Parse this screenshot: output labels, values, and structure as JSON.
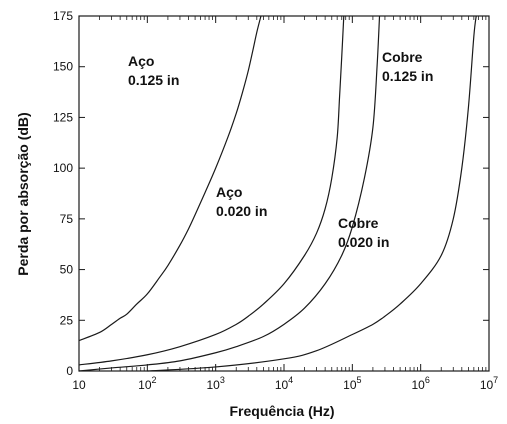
{
  "chart_data": {
    "type": "line",
    "title": "",
    "xlabel": "Frequência (Hz)",
    "ylabel": "Perda por absorção (dB)",
    "x_scale": "log",
    "xlim": [
      10,
      10000000
    ],
    "ylim": [
      0,
      175
    ],
    "x_ticks": [
      {
        "value": 10,
        "base": "10",
        "exp": ""
      },
      {
        "value": 100,
        "base": "10",
        "exp": "2"
      },
      {
        "value": 1000,
        "base": "10",
        "exp": "3"
      },
      {
        "value": 10000,
        "base": "10",
        "exp": "4"
      },
      {
        "value": 100000,
        "base": "10",
        "exp": "5"
      },
      {
        "value": 1000000,
        "base": "10",
        "exp": "6"
      },
      {
        "value": 10000000,
        "base": "10",
        "exp": "7"
      }
    ],
    "y_ticks": [
      0,
      25,
      50,
      75,
      100,
      125,
      150,
      175
    ],
    "grid": false,
    "legend": "none",
    "series": [
      {
        "label_lines": [
          "Aço",
          "0.125 in"
        ],
        "points": [
          [
            10,
            15
          ],
          [
            20,
            19
          ],
          [
            30,
            23
          ],
          [
            40,
            26
          ],
          [
            50,
            28
          ],
          [
            70,
            33
          ],
          [
            100,
            38
          ],
          [
            150,
            46
          ],
          [
            200,
            52
          ],
          [
            300,
            62
          ],
          [
            400,
            70
          ],
          [
            500,
            77
          ],
          [
            700,
            88
          ],
          [
            1000,
            100
          ],
          [
            1500,
            115
          ],
          [
            2000,
            127
          ],
          [
            2500,
            138
          ],
          [
            3000,
            148
          ],
          [
            3500,
            158
          ],
          [
            4000,
            167
          ],
          [
            4600,
            175
          ]
        ]
      },
      {
        "label_lines": [
          "Aço",
          "0.020 in"
        ],
        "points": [
          [
            10,
            3
          ],
          [
            30,
            5
          ],
          [
            100,
            8
          ],
          [
            300,
            12
          ],
          [
            1000,
            18
          ],
          [
            2000,
            23
          ],
          [
            3000,
            27
          ],
          [
            5000,
            33
          ],
          [
            10000,
            43
          ],
          [
            20000,
            57
          ],
          [
            30000,
            68
          ],
          [
            40000,
            80
          ],
          [
            50000,
            95
          ],
          [
            60000,
            115
          ],
          [
            65000,
            135
          ],
          [
            70000,
            155
          ],
          [
            75000,
            175
          ]
        ]
      },
      {
        "label_lines": [
          "Cobre",
          "0.125 in"
        ],
        "points": [
          [
            10,
            0
          ],
          [
            30,
            1.5
          ],
          [
            100,
            3
          ],
          [
            300,
            5
          ],
          [
            1000,
            9
          ],
          [
            2000,
            12
          ],
          [
            5000,
            17
          ],
          [
            10000,
            23
          ],
          [
            20000,
            31
          ],
          [
            40000,
            43
          ],
          [
            70000,
            57
          ],
          [
            100000,
            71
          ],
          [
            150000,
            95
          ],
          [
            200000,
            120
          ],
          [
            230000,
            150
          ],
          [
            250000,
            175
          ]
        ]
      },
      {
        "label_lines": [
          "Cobre",
          "0.020 in"
        ],
        "points": [
          [
            100,
            0
          ],
          [
            1000,
            2
          ],
          [
            10000,
            6
          ],
          [
            30000,
            10
          ],
          [
            100000,
            18
          ],
          [
            200000,
            23
          ],
          [
            300000,
            27
          ],
          [
            500000,
            33
          ],
          [
            1000000,
            43
          ],
          [
            2000000,
            57
          ],
          [
            3000000,
            75
          ],
          [
            4000000,
            100
          ],
          [
            5000000,
            130
          ],
          [
            6000000,
            165
          ],
          [
            6500000,
            175
          ]
        ]
      }
    ]
  }
}
